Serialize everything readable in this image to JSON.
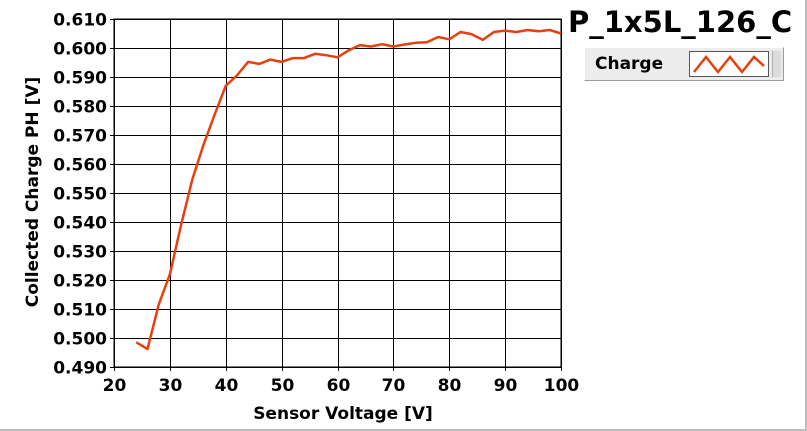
{
  "chart_data": {
    "type": "line",
    "title": "P_1x5L_126_C",
    "xlabel": "Sensor Voltage [V]",
    "ylabel": "Collected Charge PH [V]",
    "xlim": [
      20,
      100
    ],
    "ylim": [
      0.49,
      0.61
    ],
    "xticks": [
      20,
      30,
      40,
      50,
      60,
      70,
      80,
      90,
      100
    ],
    "yticks": [
      0.49,
      0.5,
      0.51,
      0.52,
      0.53,
      0.54,
      0.55,
      0.56,
      0.57,
      0.58,
      0.59,
      0.6,
      0.61
    ],
    "xtick_labels": [
      "20",
      "30",
      "40",
      "50",
      "60",
      "70",
      "80",
      "90",
      "100"
    ],
    "ytick_labels": [
      "0.490",
      "0.500",
      "0.510",
      "0.520",
      "0.530",
      "0.540",
      "0.550",
      "0.560",
      "0.570",
      "0.580",
      "0.590",
      "0.600",
      "0.610"
    ],
    "grid": true,
    "legend_position": "top-right",
    "series": [
      {
        "name": "Charge",
        "color": "#e8400c",
        "x": [
          24,
          26,
          28,
          30,
          32,
          34,
          36,
          38,
          40,
          42,
          44,
          46,
          48,
          50,
          52,
          54,
          56,
          58,
          60,
          62,
          64,
          66,
          68,
          70,
          72,
          74,
          76,
          78,
          80,
          82,
          84,
          86,
          88,
          90,
          92,
          94,
          96,
          98,
          100
        ],
        "y": [
          0.4985,
          0.4962,
          0.5115,
          0.522,
          0.539,
          0.5545,
          0.5665,
          0.577,
          0.587,
          0.5905,
          0.5952,
          0.5945,
          0.596,
          0.5952,
          0.5965,
          0.5965,
          0.598,
          0.5975,
          0.5968,
          0.5992,
          0.601,
          0.6005,
          0.6013,
          0.6005,
          0.6012,
          0.6018,
          0.602,
          0.6038,
          0.603,
          0.6055,
          0.6048,
          0.6028,
          0.6055,
          0.606,
          0.6055,
          0.6062,
          0.6058,
          0.6062,
          0.605
        ]
      }
    ]
  }
}
